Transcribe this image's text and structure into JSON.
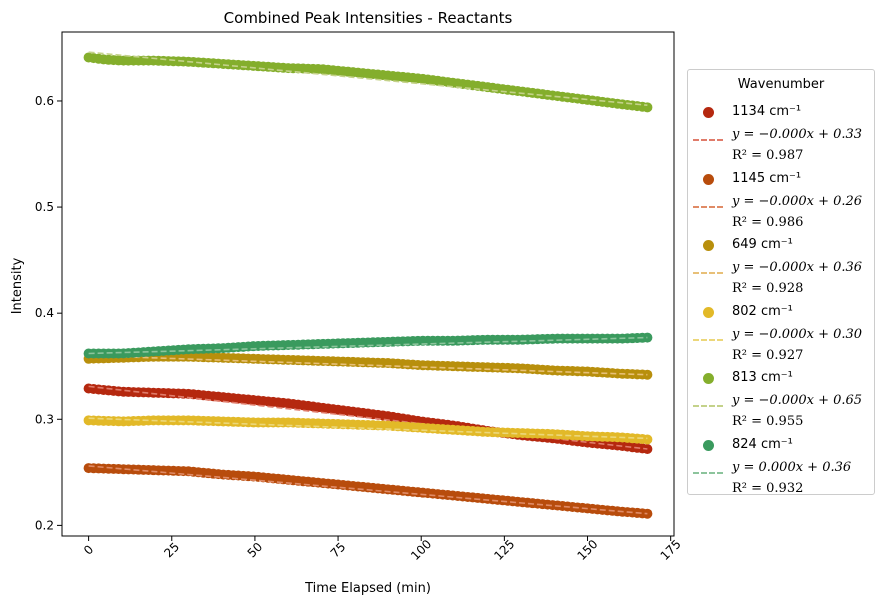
{
  "chart_data": {
    "type": "scatter",
    "title": "Combined Peak Intensities - Reactants",
    "xlabel": "Time Elapsed (min)",
    "ylabel": "Intensity",
    "xlim": [
      -8,
      176
    ],
    "ylim": [
      0.19,
      0.665
    ],
    "xticks": [
      0,
      25,
      50,
      75,
      100,
      125,
      150,
      175
    ],
    "xtick_labels": [
      "0",
      "25",
      "50",
      "75",
      "100",
      "125",
      "150",
      "175"
    ],
    "yticks": [
      0.2,
      0.3,
      0.4,
      0.5,
      0.6
    ],
    "ytick_labels": [
      "0.2",
      "0.3",
      "0.4",
      "0.5",
      "0.6"
    ],
    "grid": false,
    "legend_title": "Wavenumber",
    "legend_position": "right, outside plot",
    "x_start": 0,
    "x_end": 168,
    "series": [
      {
        "name": "1134 cm⁻¹",
        "color": "#b5280f",
        "fit_color": "#e07b6a",
        "fit_equation": "y = −0.000x + 0.33",
        "r2_label": "R² = 0.987",
        "fit": [
          [
            0,
            0.331
          ],
          [
            168,
            0.272
          ]
        ],
        "points": [
          [
            0,
            0.329
          ],
          [
            10,
            0.326
          ],
          [
            20,
            0.325
          ],
          [
            30,
            0.324
          ],
          [
            40,
            0.321
          ],
          [
            50,
            0.318
          ],
          [
            60,
            0.315
          ],
          [
            70,
            0.311
          ],
          [
            80,
            0.307
          ],
          [
            90,
            0.303
          ],
          [
            100,
            0.298
          ],
          [
            110,
            0.294
          ],
          [
            120,
            0.289
          ],
          [
            130,
            0.285
          ],
          [
            140,
            0.282
          ],
          [
            150,
            0.278
          ],
          [
            160,
            0.275
          ],
          [
            168,
            0.272
          ]
        ]
      },
      {
        "name": "1145 cm⁻¹",
        "color": "#b84c0c",
        "fit_color": "#e08b66",
        "fit_equation": "y = −0.000x + 0.26",
        "r2_label": "R² = 0.986",
        "fit": [
          [
            0,
            0.256
          ],
          [
            168,
            0.211
          ]
        ],
        "points": [
          [
            0,
            0.254
          ],
          [
            10,
            0.253
          ],
          [
            20,
            0.252
          ],
          [
            30,
            0.251
          ],
          [
            40,
            0.248
          ],
          [
            50,
            0.246
          ],
          [
            60,
            0.243
          ],
          [
            70,
            0.24
          ],
          [
            80,
            0.237
          ],
          [
            90,
            0.234
          ],
          [
            100,
            0.231
          ],
          [
            110,
            0.228
          ],
          [
            120,
            0.225
          ],
          [
            130,
            0.222
          ],
          [
            140,
            0.219
          ],
          [
            150,
            0.216
          ],
          [
            160,
            0.213
          ],
          [
            168,
            0.211
          ]
        ]
      },
      {
        "name": "649 cm⁻¹",
        "color": "#b88f0c",
        "fit_color": "#e8c078",
        "fit_equation": "y = −0.000x + 0.36",
        "r2_label": "R² = 0.928",
        "fit": [
          [
            0,
            0.36
          ],
          [
            168,
            0.342
          ]
        ],
        "points": [
          [
            0,
            0.357
          ],
          [
            10,
            0.358
          ],
          [
            20,
            0.359
          ],
          [
            30,
            0.359
          ],
          [
            40,
            0.358
          ],
          [
            50,
            0.357
          ],
          [
            60,
            0.356
          ],
          [
            70,
            0.355
          ],
          [
            80,
            0.354
          ],
          [
            90,
            0.353
          ],
          [
            100,
            0.351
          ],
          [
            110,
            0.35
          ],
          [
            120,
            0.349
          ],
          [
            130,
            0.348
          ],
          [
            140,
            0.346
          ],
          [
            150,
            0.345
          ],
          [
            160,
            0.343
          ],
          [
            168,
            0.342
          ]
        ]
      },
      {
        "name": "802 cm⁻¹",
        "color": "#e2b928",
        "fit_color": "#ecd77a",
        "fit_equation": "y = −0.000x + 0.30",
        "r2_label": "R² = 0.927",
        "fit": [
          [
            0,
            0.301
          ],
          [
            168,
            0.282
          ]
        ],
        "points": [
          [
            0,
            0.299
          ],
          [
            10,
            0.298
          ],
          [
            20,
            0.299
          ],
          [
            30,
            0.299
          ],
          [
            40,
            0.298
          ],
          [
            50,
            0.297
          ],
          [
            60,
            0.297
          ],
          [
            70,
            0.296
          ],
          [
            80,
            0.295
          ],
          [
            90,
            0.294
          ],
          [
            100,
            0.292
          ],
          [
            110,
            0.29
          ],
          [
            120,
            0.288
          ],
          [
            130,
            0.287
          ],
          [
            140,
            0.286
          ],
          [
            150,
            0.284
          ],
          [
            160,
            0.283
          ],
          [
            168,
            0.281
          ]
        ]
      },
      {
        "name": "813 cm⁻¹",
        "color": "#84ae2c",
        "fit_color": "#c4d28a",
        "fit_equation": "y = −0.000x + 0.65",
        "r2_label": "R² = 0.955",
        "fit": [
          [
            0,
            0.646
          ],
          [
            168,
            0.596
          ]
        ],
        "points": [
          [
            0,
            0.641
          ],
          [
            5,
            0.639
          ],
          [
            10,
            0.638
          ],
          [
            20,
            0.638
          ],
          [
            30,
            0.637
          ],
          [
            40,
            0.635
          ],
          [
            50,
            0.633
          ],
          [
            60,
            0.631
          ],
          [
            70,
            0.63
          ],
          [
            80,
            0.627
          ],
          [
            90,
            0.624
          ],
          [
            100,
            0.621
          ],
          [
            110,
            0.617
          ],
          [
            120,
            0.613
          ],
          [
            130,
            0.609
          ],
          [
            140,
            0.605
          ],
          [
            150,
            0.601
          ],
          [
            160,
            0.597
          ],
          [
            168,
            0.594
          ]
        ]
      },
      {
        "name": "824 cm⁻¹",
        "color": "#3a9a5e",
        "fit_color": "#8cc49c",
        "fit_equation": "y = 0.000x + 0.36",
        "r2_label": "R² = 0.932",
        "fit": [
          [
            0,
            0.362
          ],
          [
            168,
            0.377
          ]
        ],
        "points": [
          [
            0,
            0.362
          ],
          [
            10,
            0.362
          ],
          [
            20,
            0.364
          ],
          [
            30,
            0.366
          ],
          [
            40,
            0.367
          ],
          [
            50,
            0.369
          ],
          [
            60,
            0.37
          ],
          [
            70,
            0.371
          ],
          [
            80,
            0.372
          ],
          [
            90,
            0.373
          ],
          [
            100,
            0.374
          ],
          [
            110,
            0.374
          ],
          [
            120,
            0.375
          ],
          [
            130,
            0.375
          ],
          [
            140,
            0.376
          ],
          [
            150,
            0.376
          ],
          [
            160,
            0.376
          ],
          [
            168,
            0.377
          ]
        ]
      }
    ]
  }
}
